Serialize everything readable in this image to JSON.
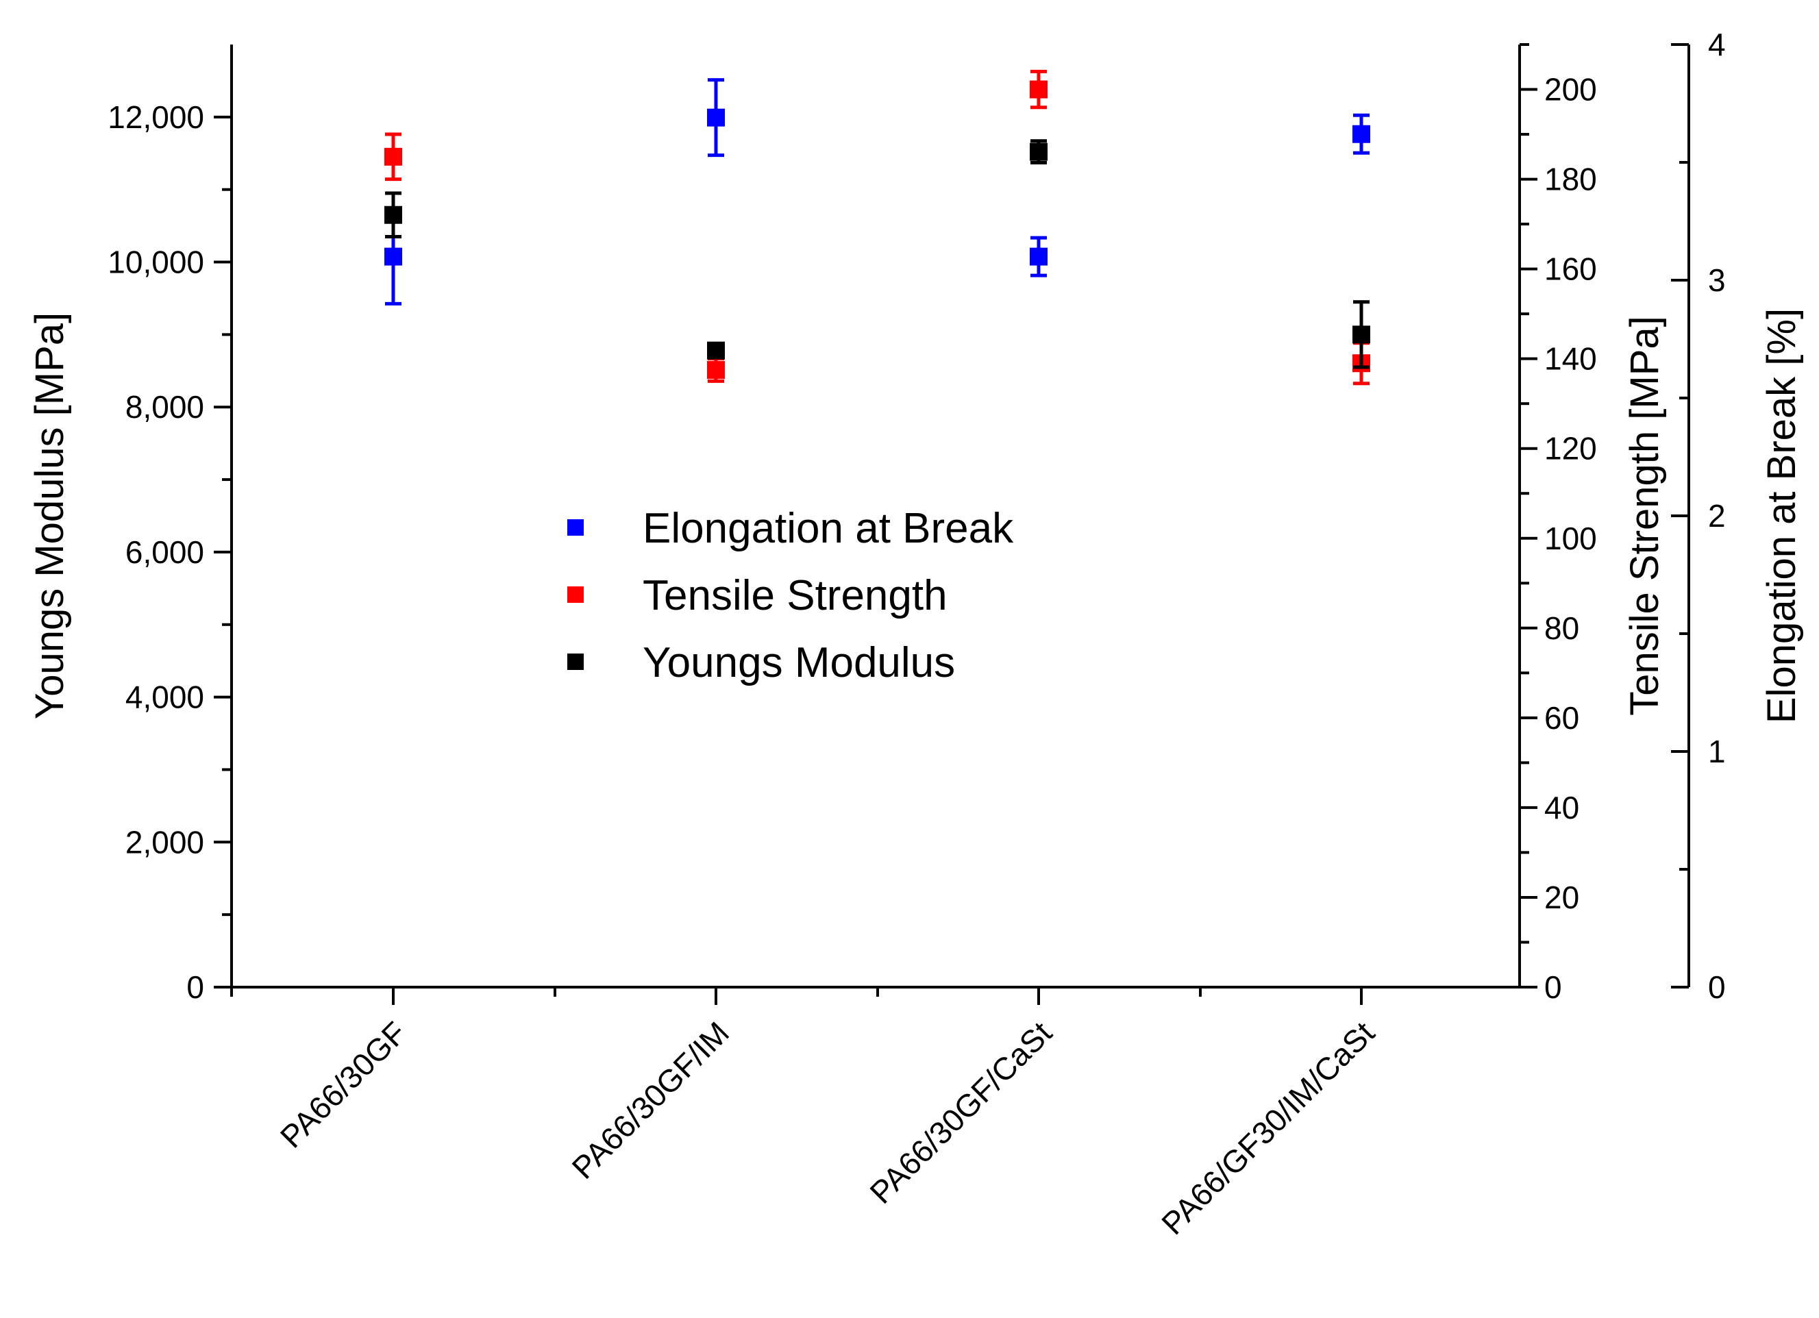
{
  "chart_data": {
    "type": "scatter",
    "categories": [
      "PA66/30GF",
      "PA66/30GF/IM",
      "PA66/30GF/CaSt",
      "PA66/GF30/IM/CaSt"
    ],
    "series": [
      {
        "name": "Elongation at Break",
        "axis": "right-outer",
        "color": "#0000ff",
        "values": [
          3.1,
          3.69,
          3.1,
          3.62
        ],
        "errors": [
          0.2,
          0.16,
          0.08,
          0.08
        ]
      },
      {
        "name": "Tensile Strength",
        "axis": "right-inner",
        "color": "#ff0000",
        "values": [
          185,
          137.5,
          200,
          139
        ],
        "errors": [
          5,
          2.5,
          4,
          4.5
        ]
      },
      {
        "name": "Youngs Modulus",
        "axis": "left",
        "color": "#000000",
        "values": [
          10650,
          8780,
          11520,
          9000
        ],
        "errors": [
          300,
          90,
          150,
          450
        ]
      }
    ],
    "axes": {
      "left": {
        "label": "Youngs Modulus [MPa]",
        "ylim": [
          0,
          13000
        ],
        "ticks": [
          0,
          2000,
          4000,
          6000,
          8000,
          10000,
          12000
        ],
        "tick_labels": [
          "0",
          "2,000",
          "4,000",
          "6,000",
          "8,000",
          "10,000",
          "12,000"
        ],
        "color": "#000000"
      },
      "right_inner": {
        "label": "Tensile Strength [MPa]",
        "ylim": [
          0,
          210
        ],
        "ticks": [
          0,
          20,
          40,
          60,
          80,
          100,
          120,
          140,
          160,
          180,
          200
        ],
        "tick_labels": [
          "0",
          "20",
          "40",
          "60",
          "80",
          "100",
          "120",
          "140",
          "160",
          "180",
          "200"
        ],
        "color": "#ff0000"
      },
      "right_outer": {
        "label": "Elongation at Break [%]",
        "ylim": [
          0,
          4
        ],
        "ticks": [
          0,
          1,
          2,
          3,
          4
        ],
        "tick_labels": [
          "0",
          "1",
          "2",
          "3",
          "4"
        ],
        "color": "#0000ff"
      }
    },
    "legend": {
      "position": "center",
      "entries": [
        "Elongation at Break",
        "Tensile Strength",
        "Youngs Modulus"
      ]
    },
    "grid": false
  }
}
